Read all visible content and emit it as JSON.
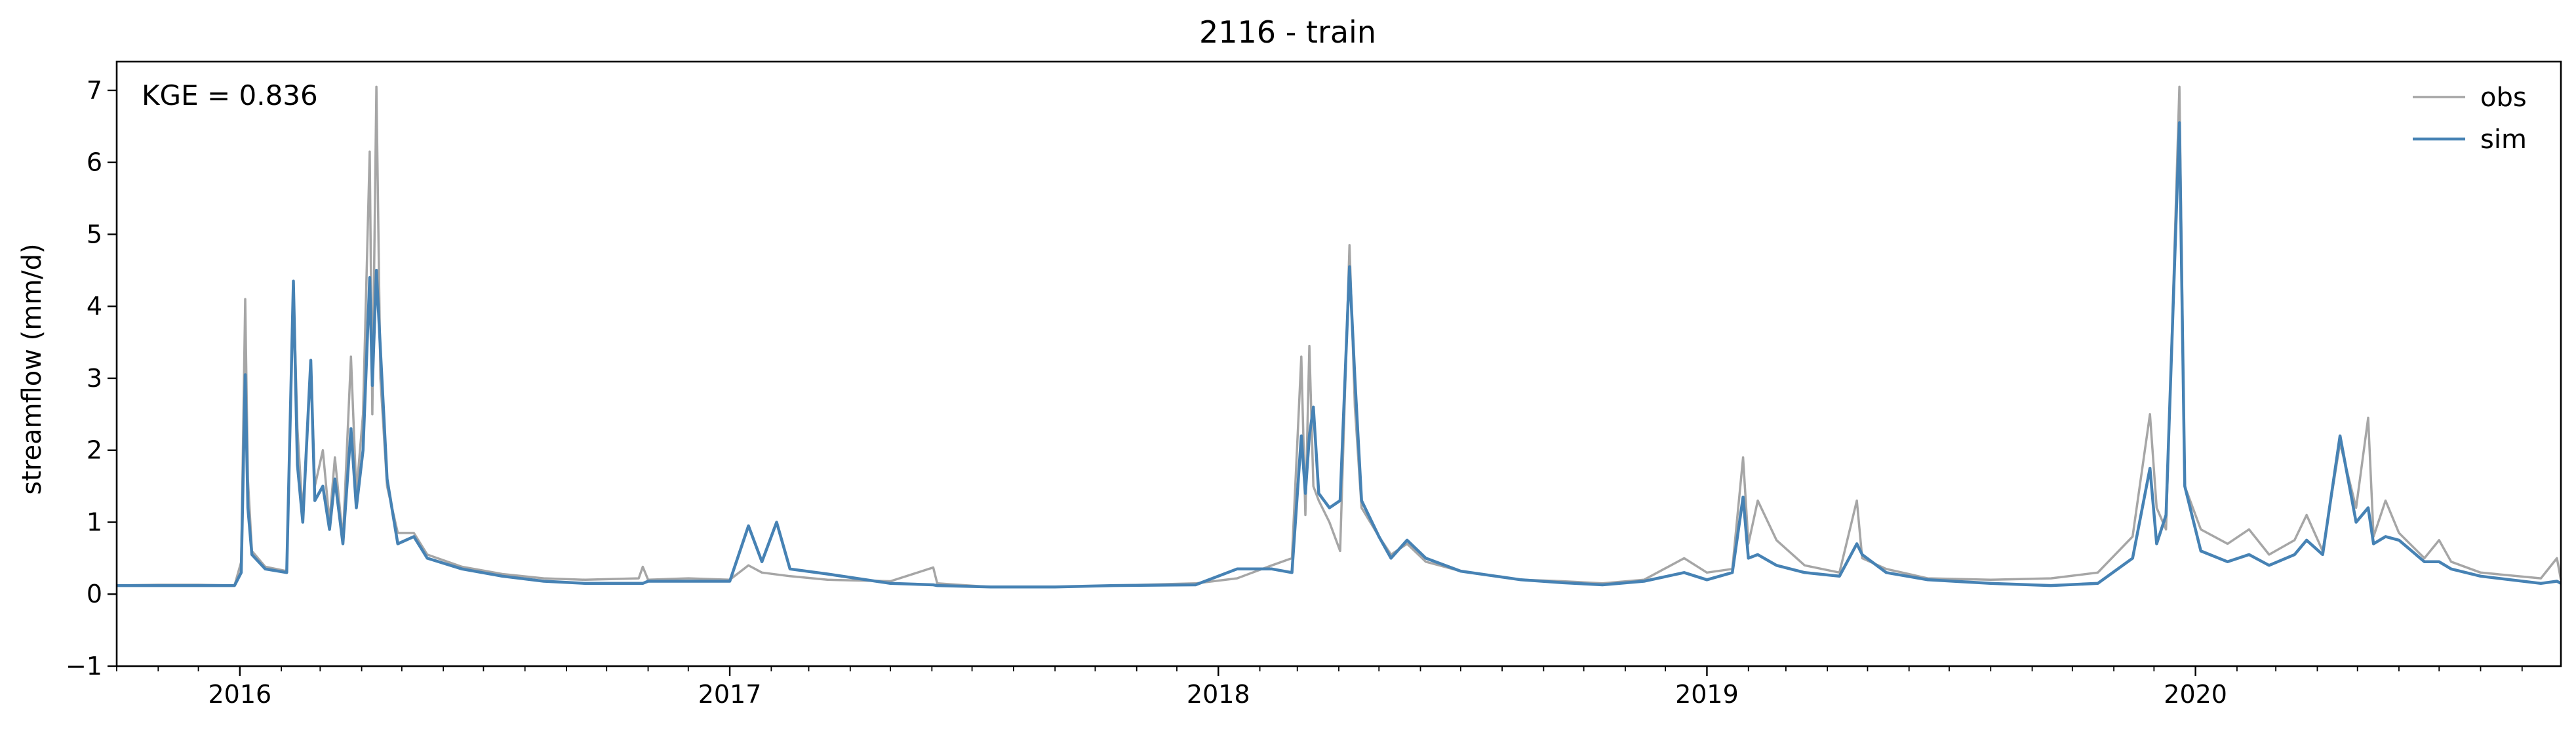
{
  "chart_data": {
    "type": "line",
    "title": "2116 - train",
    "xlabel": "",
    "ylabel": "streamflow (mm/d)",
    "annotation": "KGE = 0.836",
    "xlim": [
      "2015-10-01",
      "2020-09-30"
    ],
    "ylim": [
      -1,
      7.4
    ],
    "x_ticks": [
      "2016",
      "2017",
      "2018",
      "2019",
      "2020"
    ],
    "y_ticks": [
      "−1",
      "0",
      "1",
      "2",
      "3",
      "4",
      "5",
      "6",
      "7"
    ],
    "grid": false,
    "legend": "top-right",
    "series": [
      {
        "name": "obs",
        "color": "#a6a6a6",
        "points": [
          [
            "2015-10-01",
            0.12
          ],
          [
            "2015-11-01",
            0.13
          ],
          [
            "2015-12-01",
            0.13
          ],
          [
            "2015-12-28",
            0.12
          ],
          [
            "2016-01-02",
            0.45
          ],
          [
            "2016-01-05",
            4.1
          ],
          [
            "2016-01-07",
            1.6
          ],
          [
            "2016-01-10",
            0.6
          ],
          [
            "2016-01-20",
            0.38
          ],
          [
            "2016-02-05",
            0.32
          ],
          [
            "2016-02-10",
            4.3
          ],
          [
            "2016-02-13",
            2.3
          ],
          [
            "2016-02-17",
            1.1
          ],
          [
            "2016-02-23",
            3.2
          ],
          [
            "2016-02-26",
            1.5
          ],
          [
            "2016-03-03",
            2.0
          ],
          [
            "2016-03-08",
            1.0
          ],
          [
            "2016-03-12",
            1.9
          ],
          [
            "2016-03-18",
            0.75
          ],
          [
            "2016-03-24",
            3.3
          ],
          [
            "2016-03-28",
            1.4
          ],
          [
            "2016-04-02",
            2.5
          ],
          [
            "2016-04-07",
            6.15
          ],
          [
            "2016-04-09",
            2.5
          ],
          [
            "2016-04-12",
            7.05
          ],
          [
            "2016-04-15",
            3.0
          ],
          [
            "2016-04-20",
            1.5
          ],
          [
            "2016-04-28",
            0.85
          ],
          [
            "2016-05-10",
            0.85
          ],
          [
            "2016-05-20",
            0.55
          ],
          [
            "2016-06-15",
            0.38
          ],
          [
            "2016-07-15",
            0.28
          ],
          [
            "2016-08-15",
            0.22
          ],
          [
            "2016-09-15",
            0.2
          ],
          [
            "2016-10-25",
            0.22
          ],
          [
            "2016-10-28",
            0.38
          ],
          [
            "2016-11-01",
            0.2
          ],
          [
            "2016-12-01",
            0.22
          ],
          [
            "2017-01-01",
            0.2
          ],
          [
            "2017-01-15",
            0.4
          ],
          [
            "2017-01-25",
            0.3
          ],
          [
            "2017-02-15",
            0.25
          ],
          [
            "2017-03-15",
            0.2
          ],
          [
            "2017-05-01",
            0.18
          ],
          [
            "2017-06-02",
            0.37
          ],
          [
            "2017-06-05",
            0.15
          ],
          [
            "2017-07-15",
            0.1
          ],
          [
            "2017-09-01",
            0.1
          ],
          [
            "2017-10-15",
            0.12
          ],
          [
            "2017-12-15",
            0.15
          ],
          [
            "2018-01-15",
            0.22
          ],
          [
            "2018-02-10",
            0.4
          ],
          [
            "2018-02-25",
            0.5
          ],
          [
            "2018-03-04",
            3.3
          ],
          [
            "2018-03-07",
            1.1
          ],
          [
            "2018-03-10",
            3.45
          ],
          [
            "2018-03-13",
            1.5
          ],
          [
            "2018-03-17",
            1.3
          ],
          [
            "2018-03-25",
            1.0
          ],
          [
            "2018-04-02",
            0.6
          ],
          [
            "2018-04-09",
            4.85
          ],
          [
            "2018-04-13",
            2.6
          ],
          [
            "2018-04-18",
            1.2
          ],
          [
            "2018-05-01",
            0.8
          ],
          [
            "2018-05-10",
            0.55
          ],
          [
            "2018-05-22",
            0.7
          ],
          [
            "2018-06-05",
            0.45
          ],
          [
            "2018-07-01",
            0.32
          ],
          [
            "2018-08-15",
            0.2
          ],
          [
            "2018-09-15",
            0.18
          ],
          [
            "2018-10-15",
            0.15
          ],
          [
            "2018-11-15",
            0.2
          ],
          [
            "2018-12-15",
            0.5
          ],
          [
            "2019-01-01",
            0.3
          ],
          [
            "2019-01-20",
            0.35
          ],
          [
            "2019-01-28",
            1.9
          ],
          [
            "2019-02-01",
            0.7
          ],
          [
            "2019-02-08",
            1.3
          ],
          [
            "2019-02-22",
            0.75
          ],
          [
            "2019-03-15",
            0.4
          ],
          [
            "2019-04-10",
            0.3
          ],
          [
            "2019-04-23",
            1.3
          ],
          [
            "2019-04-27",
            0.5
          ],
          [
            "2019-05-15",
            0.35
          ],
          [
            "2019-06-15",
            0.22
          ],
          [
            "2019-08-01",
            0.2
          ],
          [
            "2019-09-15",
            0.22
          ],
          [
            "2019-10-20",
            0.3
          ],
          [
            "2019-11-15",
            0.8
          ],
          [
            "2019-11-28",
            2.5
          ],
          [
            "2019-12-03",
            1.2
          ],
          [
            "2019-12-10",
            0.9
          ],
          [
            "2019-12-20",
            7.05
          ],
          [
            "2019-12-24",
            1.5
          ],
          [
            "2020-01-05",
            0.9
          ],
          [
            "2020-01-25",
            0.7
          ],
          [
            "2020-02-10",
            0.9
          ],
          [
            "2020-02-25",
            0.55
          ],
          [
            "2020-03-15",
            0.75
          ],
          [
            "2020-03-24",
            1.1
          ],
          [
            "2020-04-05",
            0.6
          ],
          [
            "2020-04-18",
            2.1
          ],
          [
            "2020-04-30",
            1.2
          ],
          [
            "2020-05-09",
            2.45
          ],
          [
            "2020-05-13",
            0.8
          ],
          [
            "2020-05-22",
            1.3
          ],
          [
            "2020-06-01",
            0.85
          ],
          [
            "2020-06-20",
            0.5
          ],
          [
            "2020-07-01",
            0.75
          ],
          [
            "2020-07-10",
            0.45
          ],
          [
            "2020-08-01",
            0.3
          ],
          [
            "2020-09-15",
            0.22
          ],
          [
            "2020-09-27",
            0.5
          ],
          [
            "2020-09-30",
            0.2
          ]
        ]
      },
      {
        "name": "sim",
        "color": "#4682b4",
        "points": [
          [
            "2015-10-01",
            0.12
          ],
          [
            "2015-11-01",
            0.12
          ],
          [
            "2015-12-01",
            0.12
          ],
          [
            "2015-12-28",
            0.12
          ],
          [
            "2016-01-02",
            0.3
          ],
          [
            "2016-01-05",
            3.05
          ],
          [
            "2016-01-07",
            1.2
          ],
          [
            "2016-01-10",
            0.55
          ],
          [
            "2016-01-20",
            0.35
          ],
          [
            "2016-02-05",
            0.3
          ],
          [
            "2016-02-10",
            4.35
          ],
          [
            "2016-02-13",
            1.8
          ],
          [
            "2016-02-17",
            1.0
          ],
          [
            "2016-02-23",
            3.25
          ],
          [
            "2016-02-26",
            1.3
          ],
          [
            "2016-03-03",
            1.5
          ],
          [
            "2016-03-08",
            0.9
          ],
          [
            "2016-03-12",
            1.6
          ],
          [
            "2016-03-18",
            0.7
          ],
          [
            "2016-03-24",
            2.3
          ],
          [
            "2016-03-28",
            1.2
          ],
          [
            "2016-04-02",
            2.0
          ],
          [
            "2016-04-07",
            4.4
          ],
          [
            "2016-04-09",
            2.9
          ],
          [
            "2016-04-12",
            4.5
          ],
          [
            "2016-04-15",
            3.4
          ],
          [
            "2016-04-20",
            1.6
          ],
          [
            "2016-04-28",
            0.7
          ],
          [
            "2016-05-10",
            0.8
          ],
          [
            "2016-05-20",
            0.5
          ],
          [
            "2016-06-15",
            0.35
          ],
          [
            "2016-07-15",
            0.25
          ],
          [
            "2016-08-15",
            0.18
          ],
          [
            "2016-09-15",
            0.15
          ],
          [
            "2016-10-25",
            0.15
          ],
          [
            "2016-10-28",
            0.15
          ],
          [
            "2016-11-01",
            0.18
          ],
          [
            "2016-12-01",
            0.18
          ],
          [
            "2017-01-01",
            0.18
          ],
          [
            "2017-01-15",
            0.95
          ],
          [
            "2017-01-25",
            0.45
          ],
          [
            "2017-02-05",
            1.0
          ],
          [
            "2017-02-15",
            0.35
          ],
          [
            "2017-03-15",
            0.28
          ],
          [
            "2017-05-01",
            0.15
          ],
          [
            "2017-06-02",
            0.13
          ],
          [
            "2017-06-05",
            0.12
          ],
          [
            "2017-07-15",
            0.1
          ],
          [
            "2017-09-01",
            0.1
          ],
          [
            "2017-10-15",
            0.12
          ],
          [
            "2017-12-15",
            0.13
          ],
          [
            "2018-01-15",
            0.35
          ],
          [
            "2018-02-10",
            0.35
          ],
          [
            "2018-02-25",
            0.3
          ],
          [
            "2018-03-04",
            2.2
          ],
          [
            "2018-03-07",
            1.4
          ],
          [
            "2018-03-10",
            2.2
          ],
          [
            "2018-03-13",
            2.6
          ],
          [
            "2018-03-17",
            1.4
          ],
          [
            "2018-03-25",
            1.2
          ],
          [
            "2018-04-02",
            1.3
          ],
          [
            "2018-04-09",
            4.55
          ],
          [
            "2018-04-13",
            3.0
          ],
          [
            "2018-04-18",
            1.3
          ],
          [
            "2018-05-01",
            0.8
          ],
          [
            "2018-05-10",
            0.5
          ],
          [
            "2018-05-22",
            0.75
          ],
          [
            "2018-06-05",
            0.5
          ],
          [
            "2018-07-01",
            0.32
          ],
          [
            "2018-08-15",
            0.2
          ],
          [
            "2018-09-15",
            0.16
          ],
          [
            "2018-10-15",
            0.13
          ],
          [
            "2018-11-15",
            0.18
          ],
          [
            "2018-12-15",
            0.3
          ],
          [
            "2019-01-01",
            0.2
          ],
          [
            "2019-01-20",
            0.3
          ],
          [
            "2019-01-28",
            1.35
          ],
          [
            "2019-02-01",
            0.5
          ],
          [
            "2019-02-08",
            0.55
          ],
          [
            "2019-02-22",
            0.4
          ],
          [
            "2019-03-15",
            0.3
          ],
          [
            "2019-04-10",
            0.25
          ],
          [
            "2019-04-23",
            0.7
          ],
          [
            "2019-04-27",
            0.55
          ],
          [
            "2019-05-15",
            0.3
          ],
          [
            "2019-06-15",
            0.2
          ],
          [
            "2019-08-01",
            0.15
          ],
          [
            "2019-09-15",
            0.12
          ],
          [
            "2019-10-20",
            0.15
          ],
          [
            "2019-11-15",
            0.5
          ],
          [
            "2019-11-28",
            1.75
          ],
          [
            "2019-12-03",
            0.7
          ],
          [
            "2019-12-10",
            1.1
          ],
          [
            "2019-12-20",
            6.55
          ],
          [
            "2019-12-24",
            1.5
          ],
          [
            "2020-01-05",
            0.6
          ],
          [
            "2020-01-25",
            0.45
          ],
          [
            "2020-02-10",
            0.55
          ],
          [
            "2020-02-25",
            0.4
          ],
          [
            "2020-03-15",
            0.55
          ],
          [
            "2020-03-24",
            0.75
          ],
          [
            "2020-04-05",
            0.55
          ],
          [
            "2020-04-18",
            2.2
          ],
          [
            "2020-04-30",
            1.0
          ],
          [
            "2020-05-09",
            1.2
          ],
          [
            "2020-05-13",
            0.7
          ],
          [
            "2020-05-22",
            0.8
          ],
          [
            "2020-06-01",
            0.75
          ],
          [
            "2020-06-20",
            0.45
          ],
          [
            "2020-07-01",
            0.45
          ],
          [
            "2020-07-10",
            0.35
          ],
          [
            "2020-08-01",
            0.25
          ],
          [
            "2020-09-15",
            0.15
          ],
          [
            "2020-09-27",
            0.18
          ],
          [
            "2020-09-30",
            0.15
          ]
        ]
      }
    ]
  }
}
